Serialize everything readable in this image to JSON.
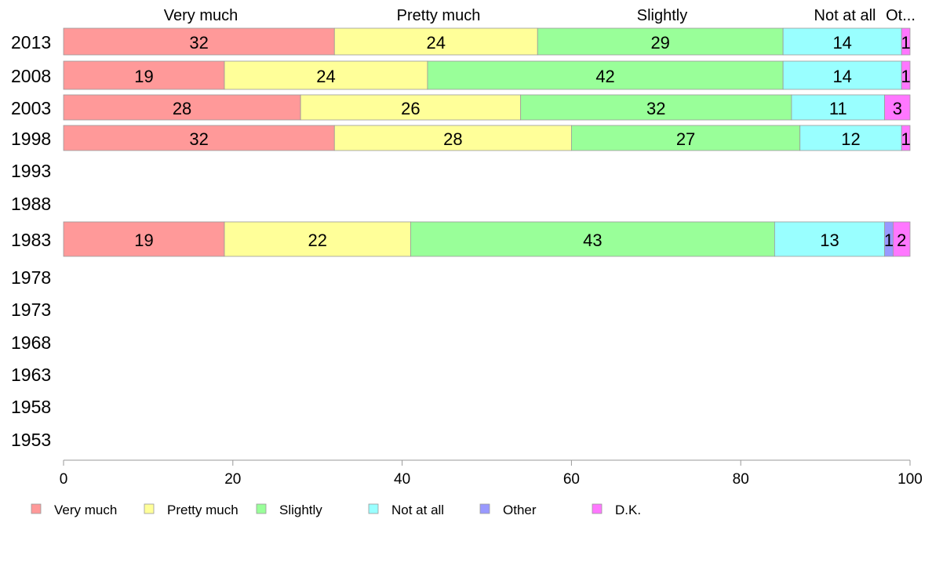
{
  "chart_data": {
    "type": "bar",
    "orientation": "horizontal",
    "stacked": true,
    "categories": [
      "2013",
      "2008",
      "2003",
      "1998",
      "1993",
      "1988",
      "1983",
      "1978",
      "1973",
      "1968",
      "1963",
      "1958",
      "1953"
    ],
    "series": [
      {
        "name": "Very much",
        "color": "#ff9999",
        "values": [
          32,
          19,
          28,
          32,
          null,
          null,
          19,
          null,
          null,
          null,
          null,
          null,
          null
        ]
      },
      {
        "name": "Pretty much",
        "color": "#ffff99",
        "values": [
          24,
          24,
          26,
          28,
          null,
          null,
          22,
          null,
          null,
          null,
          null,
          null,
          null
        ]
      },
      {
        "name": "Slightly",
        "color": "#99ff99",
        "values": [
          29,
          42,
          32,
          27,
          null,
          null,
          43,
          null,
          null,
          null,
          null,
          null,
          null
        ]
      },
      {
        "name": "Not at all",
        "color": "#99ffff",
        "values": [
          14,
          14,
          11,
          12,
          null,
          null,
          13,
          null,
          null,
          null,
          null,
          null,
          null
        ]
      },
      {
        "name": "Other",
        "color": "#9999ff",
        "values": [
          0,
          0,
          0,
          0,
          null,
          null,
          1,
          null,
          null,
          null,
          null,
          null,
          null
        ]
      },
      {
        "name": "D.K.",
        "color": "#ff77ff",
        "values": [
          1,
          1,
          3,
          1,
          null,
          null,
          2,
          null,
          null,
          null,
          null,
          null,
          null
        ]
      }
    ],
    "top_labels": [
      "Very much",
      "Pretty much",
      "Slightly",
      "Not at all",
      "Ot..."
    ],
    "x_ticks": [
      "0",
      "20",
      "40",
      "60",
      "80",
      "100"
    ],
    "xlim": [
      0,
      100
    ],
    "legend_position": "bottom",
    "grid": false
  }
}
